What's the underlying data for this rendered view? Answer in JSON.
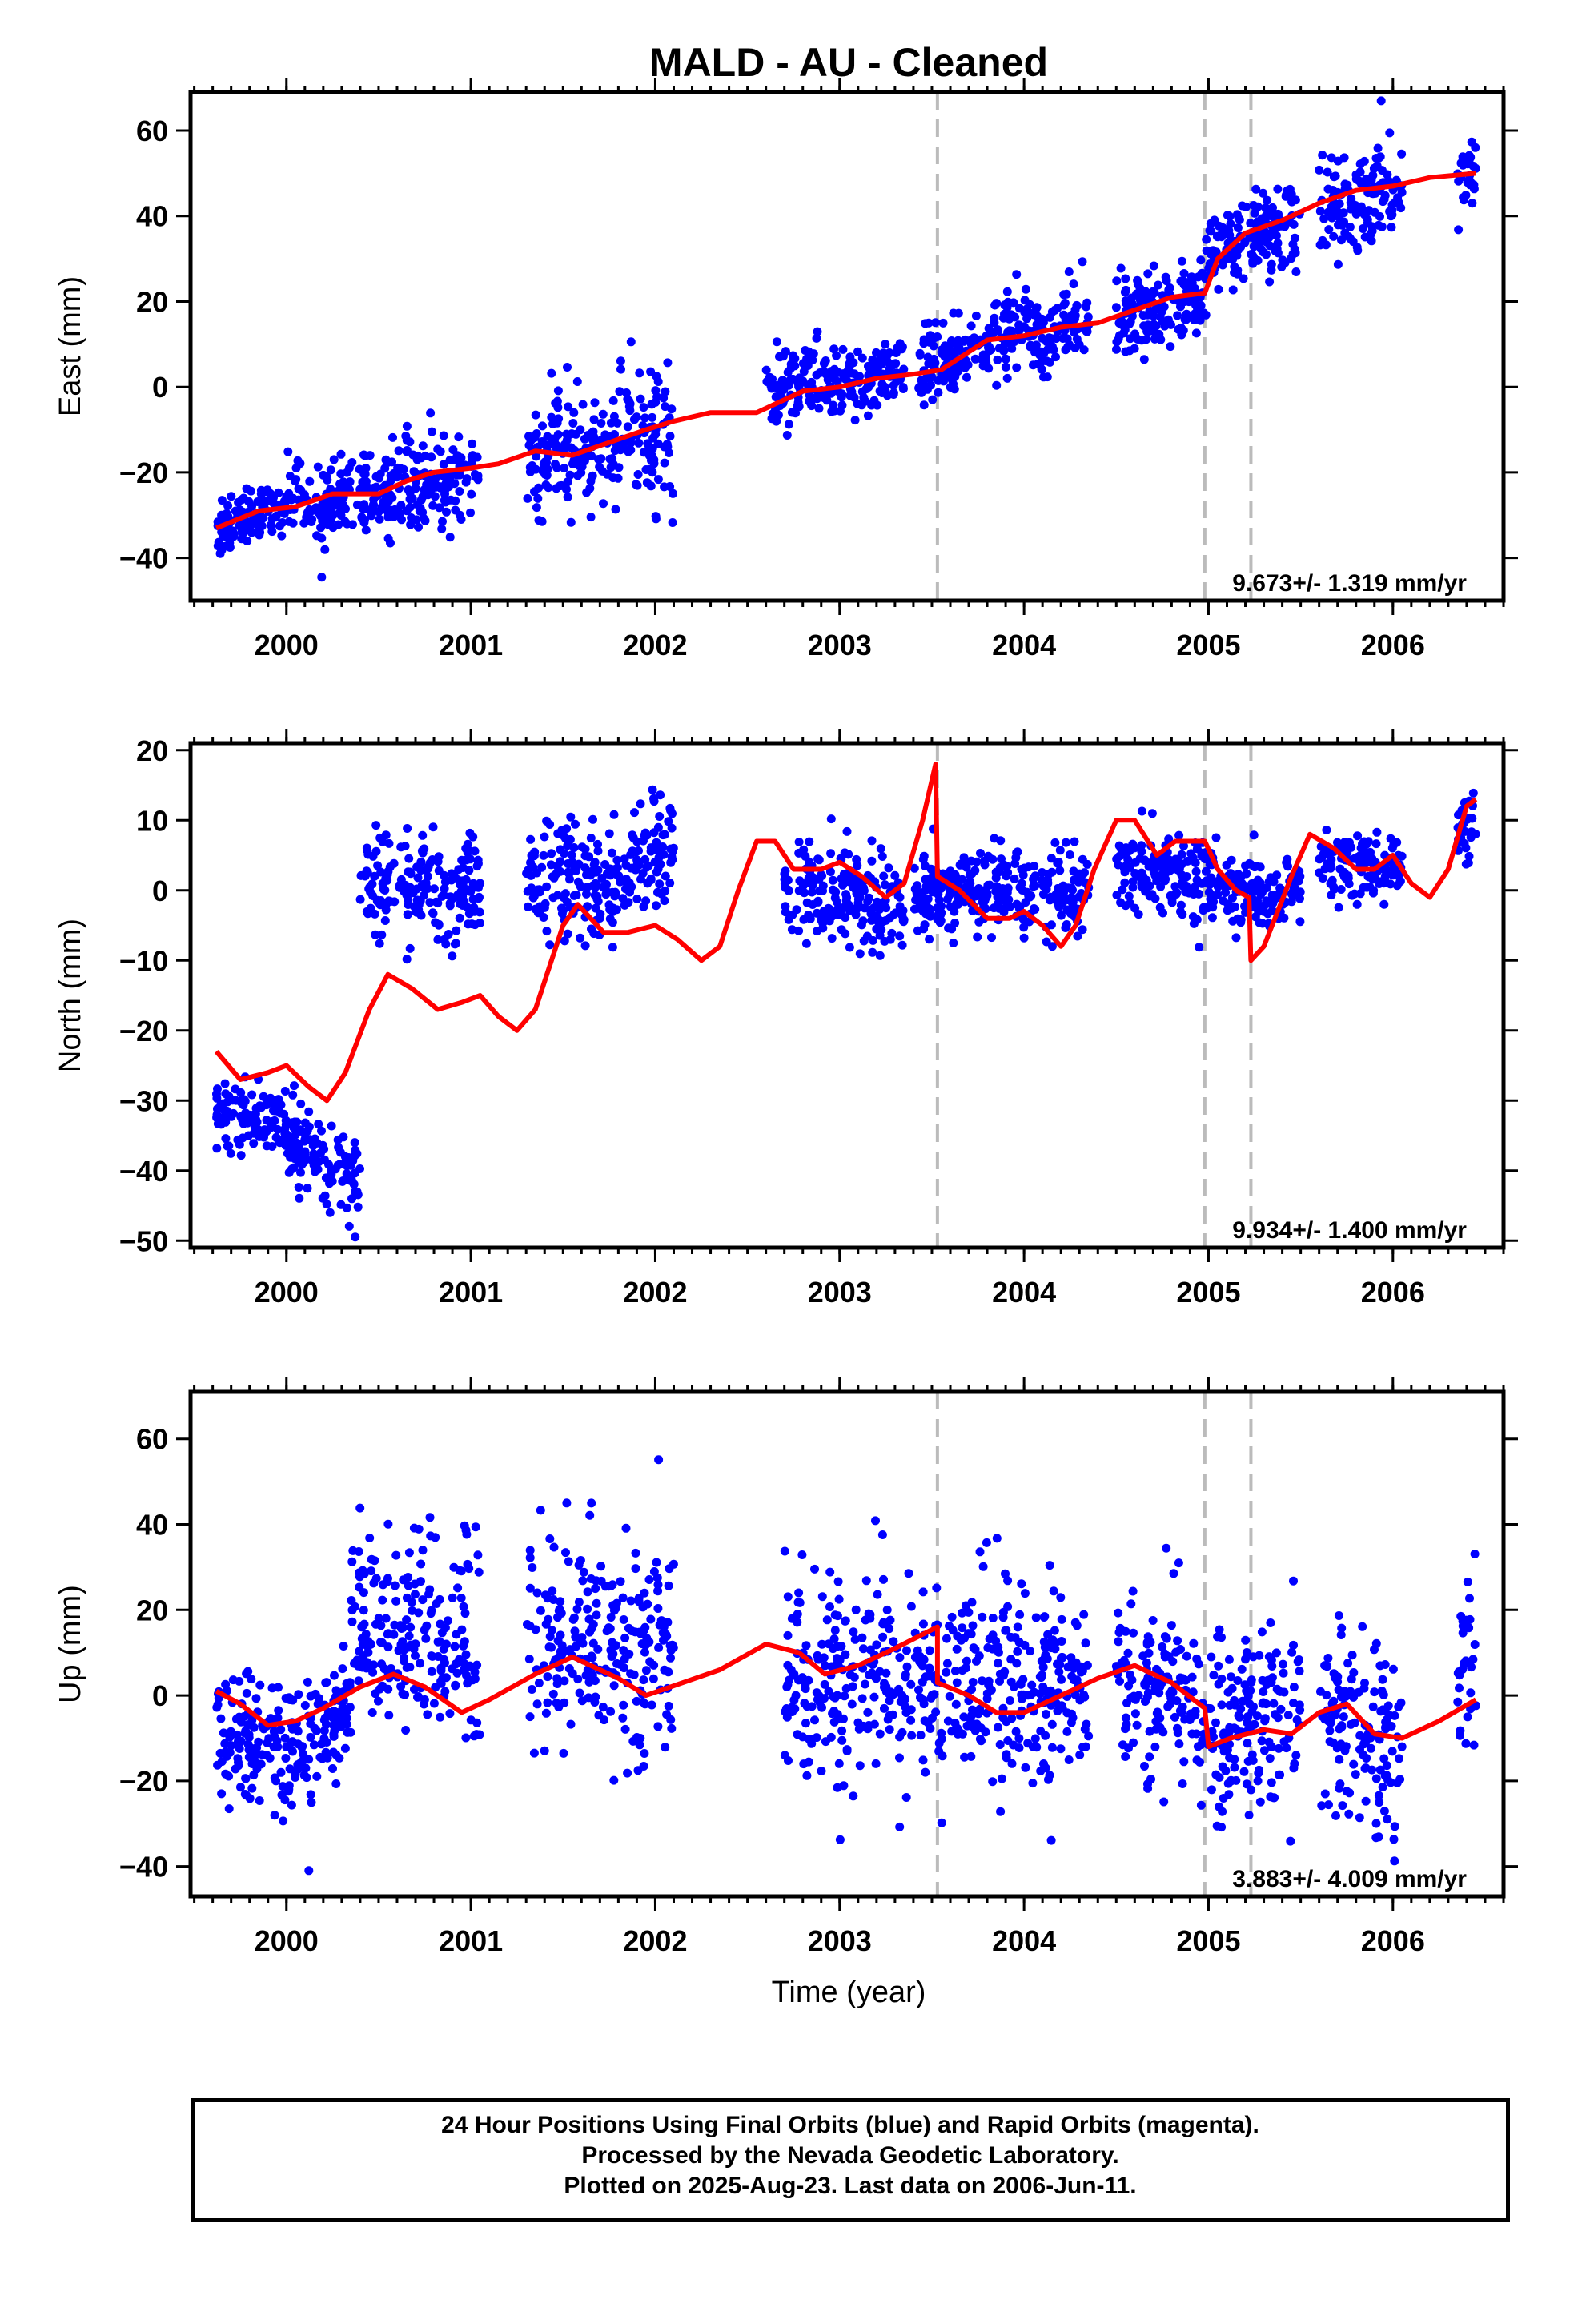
{
  "figure": {
    "title": "MALD  - AU - Cleaned",
    "x_label": "Time (year)",
    "caption": [
      "24 Hour Positions Using Final Orbits (blue) and Rapid Orbits (magenta).",
      "Processed by the Nevada Geodetic Laboratory.",
      "Plotted on 2025-Aug-23. Last data on 2006-Jun-11."
    ],
    "colors": {
      "data": "#0000ff",
      "model": "#ff0000",
      "breaks": "#bbbbbb",
      "frame": "#000000"
    }
  },
  "chart_data": [
    {
      "type": "scatter",
      "name": "east",
      "ylabel": "East (mm)",
      "xlabel": "",
      "xlim": [
        1999.48,
        2006.6
      ],
      "ylim": [
        -50,
        69
      ],
      "xticks": [
        2000,
        2001,
        2002,
        2003,
        2004,
        2005,
        2006
      ],
      "yticks": [
        -40,
        -20,
        0,
        20,
        40,
        60
      ],
      "grid": false,
      "rate_text": "9.673+/- 1.319 mm/yr",
      "break_lines": [
        2003.53,
        2004.98,
        2005.23
      ],
      "segments": [
        {
          "t0": 1999.62,
          "t1": 2000.05,
          "y0": -33,
          "y1": -27,
          "sd": 3.5
        },
        {
          "t0": 2000.05,
          "t1": 2000.55,
          "y0": -28,
          "y1": -24,
          "sd": 4.5
        },
        {
          "t0": 2000.55,
          "t1": 2001.05,
          "y0": -24,
          "y1": -20,
          "sd": 6
        },
        {
          "t0": 2001.3,
          "t1": 2001.75,
          "y0": -16,
          "y1": -14,
          "sd": 7
        },
        {
          "t0": 2001.75,
          "t1": 2002.1,
          "y0": -13,
          "y1": -8,
          "sd": 8
        },
        {
          "t0": 2002.6,
          "t1": 2003.0,
          "y0": 0,
          "y1": 1,
          "sd": 5
        },
        {
          "t0": 2003.0,
          "t1": 2003.35,
          "y0": 1,
          "y1": 4,
          "sd": 4
        },
        {
          "t0": 2003.42,
          "t1": 2003.9,
          "y0": 3,
          "y1": 12,
          "sd": 4.5
        },
        {
          "t0": 2003.9,
          "t1": 2004.35,
          "y0": 12,
          "y1": 15,
          "sd": 5
        },
        {
          "t0": 2004.5,
          "t1": 2004.98,
          "y0": 16,
          "y1": 20,
          "sd": 4.5
        },
        {
          "t0": 2004.98,
          "t1": 2005.25,
          "y0": 30,
          "y1": 36,
          "sd": 5
        },
        {
          "t0": 2005.25,
          "t1": 2005.5,
          "y0": 36,
          "y1": 39,
          "sd": 5
        },
        {
          "t0": 2005.6,
          "t1": 2006.05,
          "y0": 42,
          "y1": 47,
          "sd": 6
        },
        {
          "t0": 2006.35,
          "t1": 2006.45,
          "y0": 49,
          "y1": 52,
          "sd": 5
        }
      ],
      "model": [
        [
          1999.62,
          -33
        ],
        [
          1999.85,
          -29
        ],
        [
          2000.05,
          -28
        ],
        [
          2000.25,
          -25
        ],
        [
          2000.5,
          -25
        ],
        [
          2000.65,
          -22
        ],
        [
          2000.8,
          -20
        ],
        [
          2001.0,
          -19
        ],
        [
          2001.15,
          -18
        ],
        [
          2001.35,
          -15
        ],
        [
          2001.55,
          -16
        ],
        [
          2001.75,
          -13
        ],
        [
          2001.95,
          -10
        ],
        [
          2002.1,
          -8
        ],
        [
          2002.3,
          -6
        ],
        [
          2002.55,
          -6
        ],
        [
          2002.8,
          -1
        ],
        [
          2003.0,
          0
        ],
        [
          2003.2,
          2
        ],
        [
          2003.4,
          3
        ],
        [
          2003.55,
          4
        ],
        [
          2003.8,
          11
        ],
        [
          2004.0,
          12
        ],
        [
          2004.2,
          14
        ],
        [
          2004.4,
          15
        ],
        [
          2004.6,
          18
        ],
        [
          2004.8,
          21
        ],
        [
          2004.98,
          22
        ],
        [
          2005.05,
          30
        ],
        [
          2005.2,
          36
        ],
        [
          2005.4,
          39
        ],
        [
          2005.6,
          43
        ],
        [
          2005.8,
          46
        ],
        [
          2006.0,
          47
        ],
        [
          2006.2,
          49
        ],
        [
          2006.45,
          50
        ]
      ]
    },
    {
      "type": "scatter",
      "name": "north",
      "ylabel": "North (mm)",
      "xlabel": "",
      "xlim": [
        1999.48,
        2006.6
      ],
      "ylim": [
        -51,
        21
      ],
      "xticks": [
        2000,
        2001,
        2002,
        2003,
        2004,
        2005,
        2006
      ],
      "yticks": [
        -50,
        -40,
        -30,
        -20,
        -10,
        0,
        10,
        20
      ],
      "grid": false,
      "rate_text": "9.934+/- 1.400 mm/yr",
      "break_lines": [
        2003.53,
        2004.98,
        2005.23
      ],
      "segments": [
        {
          "t0": 1999.62,
          "t1": 2000.0,
          "y0": -31,
          "y1": -33,
          "sd": 2.5
        },
        {
          "t0": 2000.0,
          "t1": 2000.4,
          "y0": -35,
          "y1": -41,
          "sd": 3
        },
        {
          "t0": 2000.4,
          "t1": 2001.05,
          "y0": 1,
          "y1": 0,
          "sd": 4
        },
        {
          "t0": 2001.3,
          "t1": 2001.7,
          "y0": 3,
          "y1": 1,
          "sd": 4
        },
        {
          "t0": 2001.7,
          "t1": 2002.1,
          "y0": 0,
          "y1": 7,
          "sd": 4
        },
        {
          "t0": 2002.7,
          "t1": 2003.35,
          "y0": 0,
          "y1": -2,
          "sd": 3.5
        },
        {
          "t0": 2003.4,
          "t1": 2004.35,
          "y0": -1,
          "y1": 0,
          "sd": 3
        },
        {
          "t0": 2004.5,
          "t1": 2005.25,
          "y0": 3,
          "y1": 0,
          "sd": 3
        },
        {
          "t0": 2005.25,
          "t1": 2005.5,
          "y0": -1,
          "y1": 0,
          "sd": 2.5
        },
        {
          "t0": 2005.6,
          "t1": 2006.05,
          "y0": 4,
          "y1": 3,
          "sd": 2.5
        },
        {
          "t0": 2006.35,
          "t1": 2006.45,
          "y0": 8,
          "y1": 9,
          "sd": 2.5
        }
      ],
      "model": [
        [
          1999.62,
          -23
        ],
        [
          1999.75,
          -27
        ],
        [
          1999.9,
          -26
        ],
        [
          2000.0,
          -25
        ],
        [
          2000.12,
          -28
        ],
        [
          2000.22,
          -30
        ],
        [
          2000.32,
          -26
        ],
        [
          2000.45,
          -17
        ],
        [
          2000.55,
          -12
        ],
        [
          2000.68,
          -14
        ],
        [
          2000.82,
          -17
        ],
        [
          2000.95,
          -16
        ],
        [
          2001.05,
          -15
        ],
        [
          2001.15,
          -18
        ],
        [
          2001.25,
          -20
        ],
        [
          2001.35,
          -17
        ],
        [
          2001.5,
          -5
        ],
        [
          2001.58,
          -2
        ],
        [
          2001.72,
          -6
        ],
        [
          2001.85,
          -6
        ],
        [
          2002.0,
          -5
        ],
        [
          2002.12,
          -7
        ],
        [
          2002.25,
          -10
        ],
        [
          2002.35,
          -8
        ],
        [
          2002.45,
          0
        ],
        [
          2002.55,
          7
        ],
        [
          2002.65,
          7
        ],
        [
          2002.75,
          3
        ],
        [
          2002.9,
          3
        ],
        [
          2003.0,
          4
        ],
        [
          2003.12,
          2
        ],
        [
          2003.25,
          -1
        ],
        [
          2003.35,
          1
        ],
        [
          2003.45,
          10
        ],
        [
          2003.52,
          18
        ],
        [
          2003.53,
          2
        ],
        [
          2003.65,
          0
        ],
        [
          2003.8,
          -4
        ],
        [
          2003.92,
          -4
        ],
        [
          2004.0,
          -3
        ],
        [
          2004.1,
          -5
        ],
        [
          2004.2,
          -8
        ],
        [
          2004.28,
          -5
        ],
        [
          2004.38,
          3
        ],
        [
          2004.5,
          10
        ],
        [
          2004.6,
          10
        ],
        [
          2004.72,
          5
        ],
        [
          2004.82,
          7
        ],
        [
          2004.98,
          7
        ],
        [
          2005.05,
          3
        ],
        [
          2005.15,
          0
        ],
        [
          2005.22,
          -1
        ],
        [
          2005.23,
          -10
        ],
        [
          2005.3,
          -8
        ],
        [
          2005.45,
          2
        ],
        [
          2005.55,
          8
        ],
        [
          2005.68,
          6
        ],
        [
          2005.8,
          3
        ],
        [
          2005.9,
          3
        ],
        [
          2006.0,
          5
        ],
        [
          2006.1,
          1
        ],
        [
          2006.2,
          -1
        ],
        [
          2006.3,
          3
        ],
        [
          2006.4,
          12
        ],
        [
          2006.45,
          13
        ]
      ]
    },
    {
      "type": "scatter",
      "name": "up",
      "ylabel": "Up (mm)",
      "xlabel": "Time (year)",
      "xlim": [
        1999.48,
        2006.6
      ],
      "ylim": [
        -47,
        71
      ],
      "xticks": [
        2000,
        2001,
        2002,
        2003,
        2004,
        2005,
        2006
      ],
      "yticks": [
        -40,
        -20,
        0,
        20,
        40,
        60
      ],
      "grid": false,
      "rate_text": "3.883+/- 4.009 mm/yr",
      "break_lines": [
        2003.53,
        2004.98,
        2005.23
      ],
      "segments": [
        {
          "t0": 1999.62,
          "t1": 2000.0,
          "y0": -8,
          "y1": -12,
          "sd": 7
        },
        {
          "t0": 2000.0,
          "t1": 2000.35,
          "y0": -14,
          "y1": -3,
          "sd": 8
        },
        {
          "t0": 2000.35,
          "t1": 2001.05,
          "y0": 15,
          "y1": 12,
          "sd": 12
        },
        {
          "t0": 2001.3,
          "t1": 2002.1,
          "y0": 15,
          "y1": 10,
          "sd": 13
        },
        {
          "t0": 2002.7,
          "t1": 2003.53,
          "y0": 5,
          "y1": 3,
          "sd": 12
        },
        {
          "t0": 2003.53,
          "t1": 2004.35,
          "y0": 4,
          "y1": 0,
          "sd": 12
        },
        {
          "t0": 2004.5,
          "t1": 2004.98,
          "y0": 5,
          "y1": -3,
          "sd": 11
        },
        {
          "t0": 2004.98,
          "t1": 2005.5,
          "y0": -10,
          "y1": -5,
          "sd": 11
        },
        {
          "t0": 2005.6,
          "t1": 2006.05,
          "y0": -2,
          "y1": -15,
          "sd": 11
        },
        {
          "t0": 2006.35,
          "t1": 2006.45,
          "y0": 5,
          "y1": 10,
          "sd": 12
        }
      ],
      "model": [
        [
          1999.62,
          1
        ],
        [
          1999.75,
          -2
        ],
        [
          1999.9,
          -7
        ],
        [
          2000.05,
          -6
        ],
        [
          2000.2,
          -3
        ],
        [
          2000.4,
          2
        ],
        [
          2000.58,
          5
        ],
        [
          2000.75,
          2
        ],
        [
          2000.95,
          -4
        ],
        [
          2001.1,
          -1
        ],
        [
          2001.35,
          5
        ],
        [
          2001.55,
          9
        ],
        [
          2001.8,
          4
        ],
        [
          2001.95,
          0
        ],
        [
          2002.15,
          3
        ],
        [
          2002.35,
          6
        ],
        [
          2002.6,
          12
        ],
        [
          2002.78,
          10
        ],
        [
          2002.92,
          5
        ],
        [
          2003.1,
          7
        ],
        [
          2003.3,
          11
        ],
        [
          2003.53,
          16
        ],
        [
          2003.53,
          3
        ],
        [
          2003.7,
          0
        ],
        [
          2003.85,
          -4
        ],
        [
          2004.0,
          -4
        ],
        [
          2004.2,
          0
        ],
        [
          2004.4,
          4
        ],
        [
          2004.6,
          7
        ],
        [
          2004.8,
          3
        ],
        [
          2004.98,
          -3
        ],
        [
          2005.0,
          -12
        ],
        [
          2005.12,
          -10
        ],
        [
          2005.3,
          -8
        ],
        [
          2005.45,
          -9
        ],
        [
          2005.6,
          -4
        ],
        [
          2005.75,
          -2
        ],
        [
          2005.9,
          -9
        ],
        [
          2006.05,
          -10
        ],
        [
          2006.25,
          -6
        ],
        [
          2006.45,
          -1
        ]
      ]
    }
  ]
}
